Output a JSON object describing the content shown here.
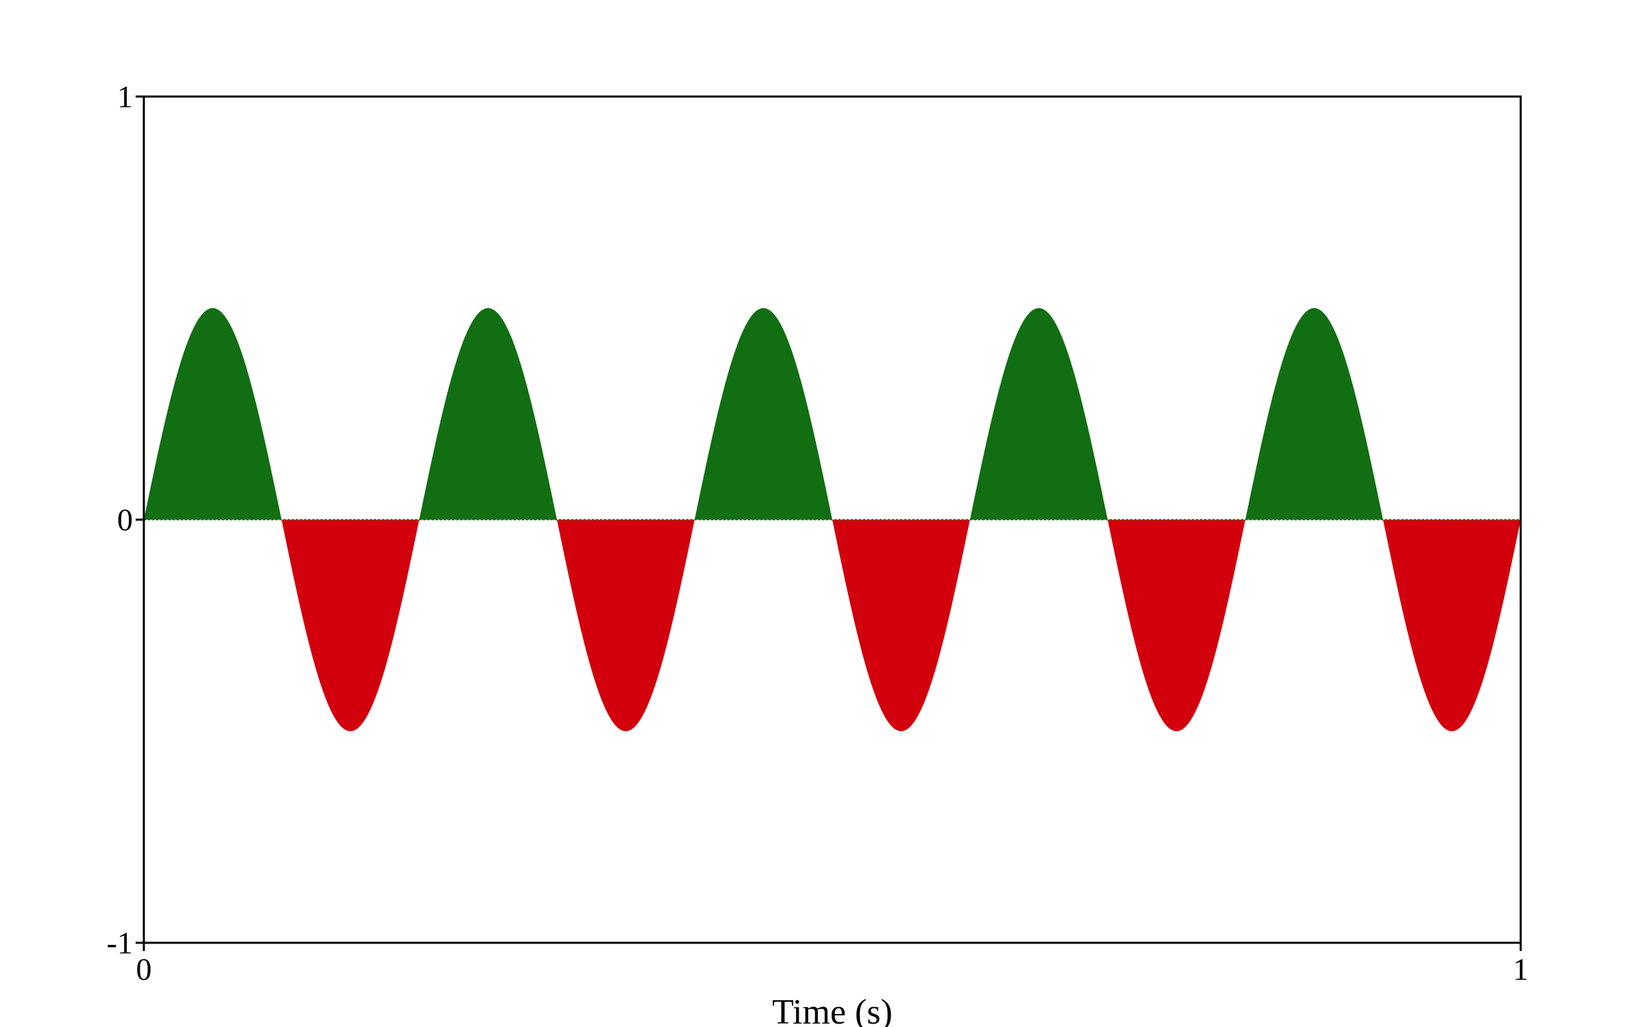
{
  "chart_data": {
    "type": "area",
    "title": "",
    "xlabel": "Time (s)",
    "ylabel": "",
    "xlim": [
      0,
      1
    ],
    "ylim": [
      -1,
      1
    ],
    "x_ticks": [
      0,
      1
    ],
    "x_tick_labels": [
      "0",
      "1"
    ],
    "y_ticks": [
      1,
      0,
      -1
    ],
    "y_tick_labels": [
      "1",
      "0",
      "-1"
    ],
    "grid": false,
    "legend": "none",
    "baseline": 0,
    "signal": {
      "function": "sine",
      "amplitude": 0.5,
      "frequency_hz": 5,
      "phase": 0,
      "samples": [
        {
          "x": 0.0,
          "y": 0.0
        },
        {
          "x": 0.05,
          "y": 0.5
        },
        {
          "x": 0.1,
          "y": 0.0
        },
        {
          "x": 0.15,
          "y": -0.5
        },
        {
          "x": 0.2,
          "y": 0.0
        },
        {
          "x": 0.25,
          "y": 0.5
        },
        {
          "x": 0.3,
          "y": 0.0
        },
        {
          "x": 0.35,
          "y": -0.5
        },
        {
          "x": 0.4,
          "y": 0.0
        },
        {
          "x": 0.45,
          "y": 0.5
        },
        {
          "x": 0.5,
          "y": 0.0
        },
        {
          "x": 0.55,
          "y": -0.5
        },
        {
          "x": 0.6,
          "y": 0.0
        },
        {
          "x": 0.65,
          "y": 0.5
        },
        {
          "x": 0.7,
          "y": 0.0
        },
        {
          "x": 0.75,
          "y": -0.5
        },
        {
          "x": 0.8,
          "y": 0.0
        },
        {
          "x": 0.85,
          "y": 0.5
        },
        {
          "x": 0.9,
          "y": 0.0
        },
        {
          "x": 0.95,
          "y": -0.5
        },
        {
          "x": 1.0,
          "y": 0.0
        }
      ]
    },
    "colors": {
      "positive_fill": "#116e12",
      "negative_fill": "#d2000d",
      "axis": "#000000",
      "baseline": "#1a7a1a"
    }
  }
}
